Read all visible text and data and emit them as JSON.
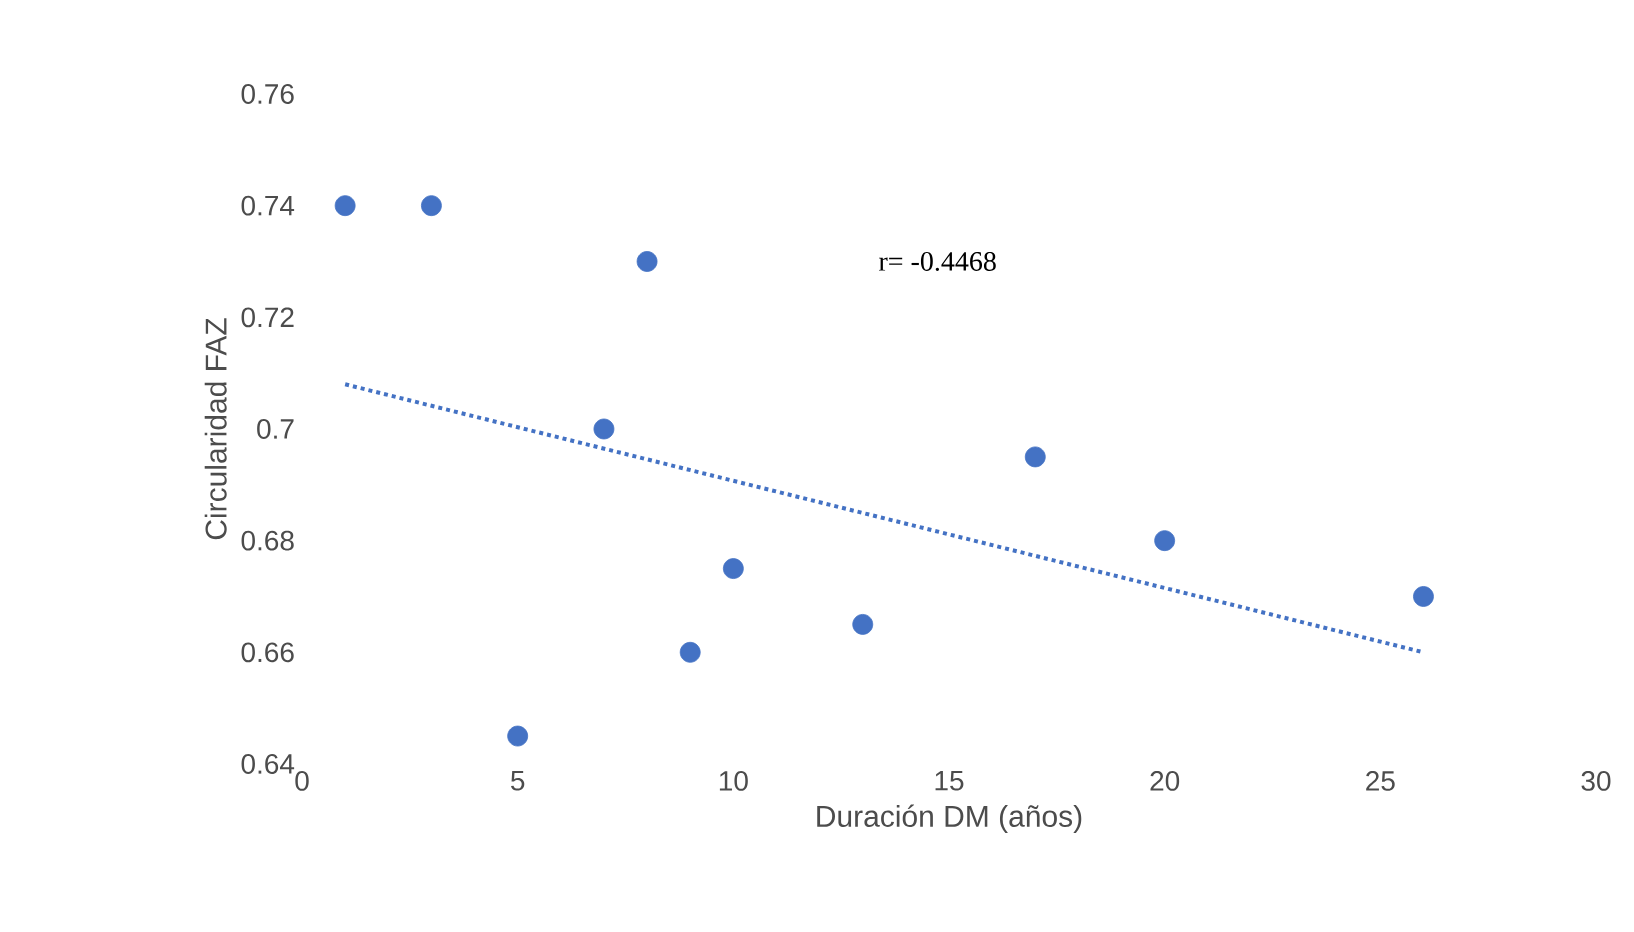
{
  "chart_data": {
    "type": "scatter",
    "xlabel": "Duración DM (años)",
    "ylabel": "Circularidad FAZ",
    "xlim": [
      0,
      30
    ],
    "xticks": [
      0,
      5,
      10,
      15,
      20,
      25,
      30
    ],
    "ylim": [
      0.64,
      0.76
    ],
    "yticks": [
      {
        "value": 0.64,
        "label": "0.64"
      },
      {
        "value": 0.66,
        "label": "0.66"
      },
      {
        "value": 0.68,
        "label": "0.68"
      },
      {
        "value": 0.7,
        "label": "0.7"
      },
      {
        "value": 0.72,
        "label": "0.72"
      },
      {
        "value": 0.74,
        "label": "0.74"
      },
      {
        "value": 0.76,
        "label": "0.76"
      }
    ],
    "grid": false,
    "annotations": [
      "r= -0.4468"
    ],
    "series": [
      {
        "color": "#4472c4",
        "marker": "circle",
        "x": [
          1,
          3,
          5,
          7,
          8,
          9,
          10,
          13,
          17,
          20,
          26
        ],
        "values": [
          0.74,
          0.74,
          0.645,
          0.7,
          0.73,
          0.66,
          0.675,
          0.665,
          0.695,
          0.68,
          0.67
        ]
      },
      {
        "type": "line",
        "color": "#4472c4",
        "line_style": "dotted",
        "marker": "none",
        "x": [
          1,
          26
        ],
        "values": [
          0.708,
          0.66
        ]
      }
    ]
  }
}
